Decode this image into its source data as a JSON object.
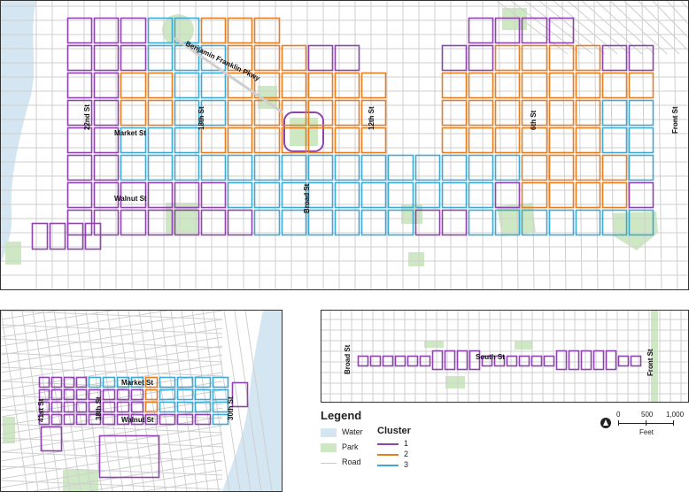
{
  "main_map": {
    "street_labels": {
      "benjamin_franklin": "Benjamin Franklin Pkwy",
      "twentysecond": "22nd St",
      "market": "Market St",
      "eighteenth": "18th St",
      "twelfth": "12th St",
      "sixth": "6th St",
      "front": "Front St",
      "broad": "Broad St",
      "walnut": "Walnut St"
    }
  },
  "west_map": {
    "street_labels": {
      "market": "Market St",
      "walnut": "Walnut St",
      "fortyfirst": "41st St",
      "thirtyeighth": "38th St",
      "thirtieth": "30th St"
    }
  },
  "south_map": {
    "street_labels": {
      "broad": "Broad St",
      "south": "South St",
      "front": "Front St"
    }
  },
  "legend": {
    "title": "Legend",
    "items": [
      {
        "label": "Water",
        "color": "#d4e6f1"
      },
      {
        "label": "Park",
        "color": "#cde8c3"
      },
      {
        "label": "Road",
        "color": "#c8c8c8"
      }
    ],
    "cluster_title": "Cluster",
    "clusters": [
      {
        "label": "1",
        "color": "#8e44ad"
      },
      {
        "label": "2",
        "color": "#e67e22"
      },
      {
        "label": "3",
        "color": "#3fa9d4"
      }
    ]
  },
  "scale_bar": {
    "ticks": [
      "0",
      "500",
      "1,000"
    ],
    "unit": "Feet"
  }
}
